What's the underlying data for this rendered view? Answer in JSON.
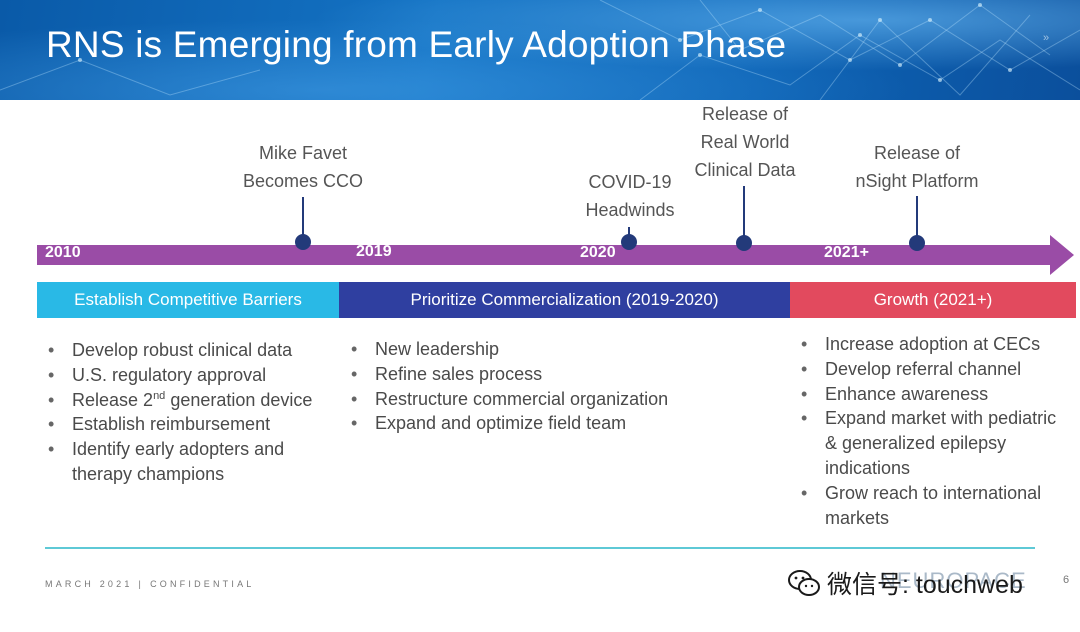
{
  "slide": {
    "title": "RNS is Emerging from Early Adoption Phase",
    "page_number": "6"
  },
  "timeline": {
    "years": [
      "2010",
      "2019",
      "2020",
      "2021+"
    ],
    "milestones": [
      {
        "lines": [
          "Mike Favet",
          "Becomes CCO"
        ]
      },
      {
        "lines": [
          "COVID-19",
          "Headwinds"
        ]
      },
      {
        "lines": [
          "Release of",
          "Real World",
          "Clinical Data"
        ]
      },
      {
        "lines": [
          "Release of",
          "nSight Platform"
        ]
      }
    ],
    "colors": {
      "arrow": "#9a4ca6",
      "marker": "#233a7a"
    }
  },
  "phases": [
    {
      "label": "Establish Competitive Barriers",
      "color": "#29b9e6",
      "bullets": [
        "Develop robust clinical data",
        "U.S. regulatory approval",
        {
          "pre": "Release 2",
          "sup": "nd",
          "post": " generation device"
        },
        "Establish reimbursement",
        "Identify early adopters and therapy champions"
      ]
    },
    {
      "label": "Prioritize Commercialization (2019-2020)",
      "color": "#2f3fa0",
      "bullets": [
        "New leadership",
        "Refine sales process",
        "Restructure commercial organization",
        "Expand and optimize field team"
      ]
    },
    {
      "label": "Growth (2021+)",
      "color": "#e24a5e",
      "bullets": [
        "Increase adoption at CECs",
        "Develop referral channel",
        "Enhance awareness",
        "Expand market with pediatric & generalized epilepsy indications",
        "Grow reach to international markets"
      ]
    }
  ],
  "footer": {
    "date": "MARCH 2021",
    "separator": "|",
    "confidential": "CONFIDENTIAL",
    "logo_text": "NEUROPACE"
  },
  "watermark": {
    "icon": "wechat-icon",
    "text": "微信号: touchweb"
  }
}
